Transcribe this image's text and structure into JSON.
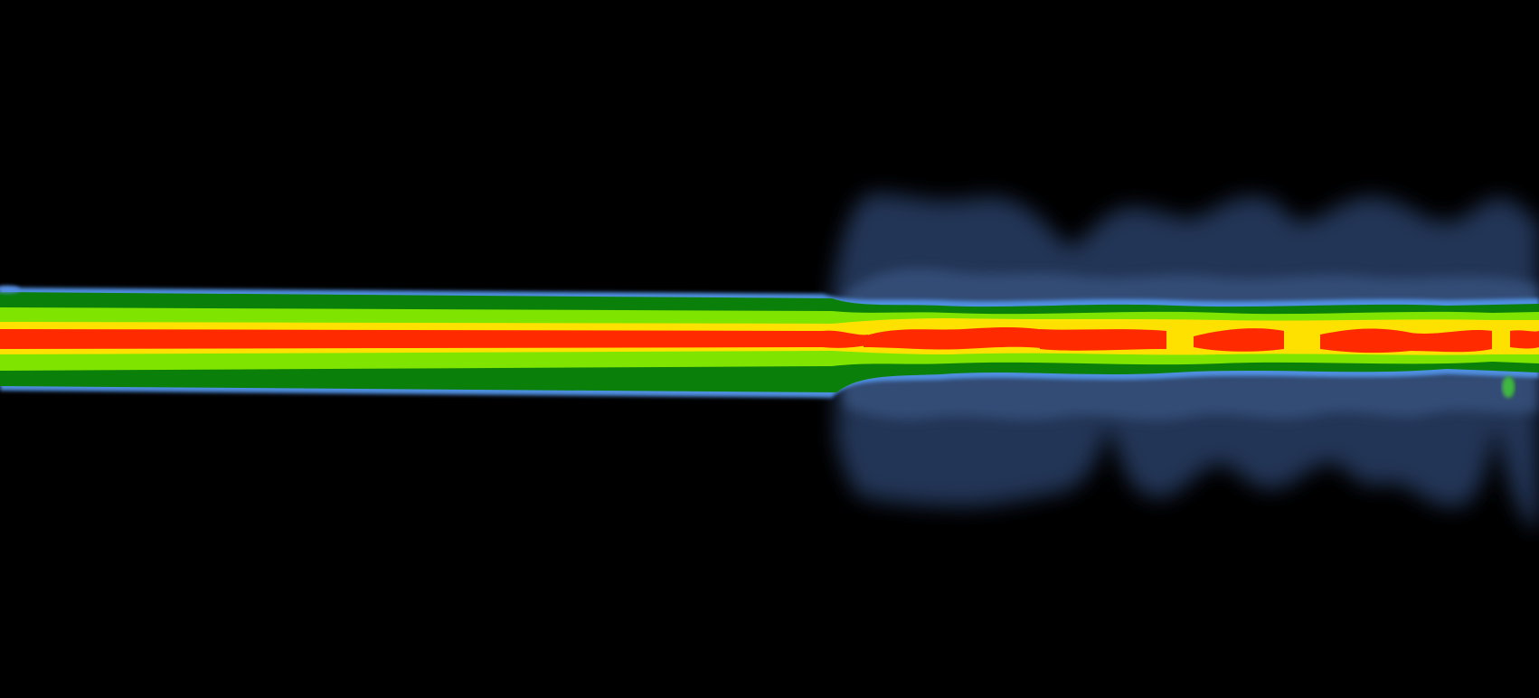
{
  "image": {
    "description_hidden": "",
    "colors": {
      "background": "#000000",
      "core": "#ff2a00",
      "inner_band": "#ffe100",
      "mid_band": "#7fe500",
      "outer_band": "#0a7f0a",
      "edge": "#4f8fe0",
      "halo": "#2d4673"
    }
  }
}
